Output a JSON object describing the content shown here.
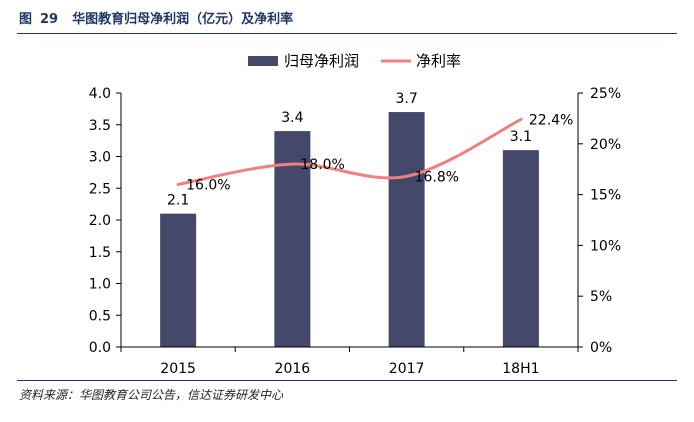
{
  "figure": {
    "label": "图",
    "number": "29",
    "title": "华图教育归母净利润（亿元）及净利率"
  },
  "source": "资料来源：华图教育公司公告，信达证券研发中心",
  "colors": {
    "bar": "#44496b",
    "line": "#f08080",
    "axis": "#000000",
    "rule": "#1f3864"
  },
  "chart_data": {
    "type": "bar",
    "categories": [
      "2015",
      "2016",
      "2017",
      "18H1"
    ],
    "series": [
      {
        "name": "归母净利润",
        "kind": "bar",
        "axis": "left",
        "values": [
          2.1,
          3.4,
          3.7,
          3.1
        ],
        "labels": [
          "2.1",
          "3.4",
          "3.7",
          "3.1"
        ]
      },
      {
        "name": "净利率",
        "kind": "line",
        "axis": "right",
        "values": [
          16.0,
          18.0,
          16.8,
          22.4
        ],
        "labels": [
          "16.0%",
          "18.0%",
          "16.8%",
          "22.4%"
        ]
      }
    ],
    "y_left": {
      "lim": [
        0,
        4.0
      ],
      "ticks": [
        "0.0",
        "0.5",
        "1.0",
        "1.5",
        "2.0",
        "2.5",
        "3.0",
        "3.5",
        "4.0"
      ]
    },
    "y_right": {
      "lim": [
        0,
        25
      ],
      "ticks": [
        "0%",
        "5%",
        "10%",
        "15%",
        "20%",
        "25%"
      ]
    },
    "legend": "top-center",
    "grid": false
  }
}
